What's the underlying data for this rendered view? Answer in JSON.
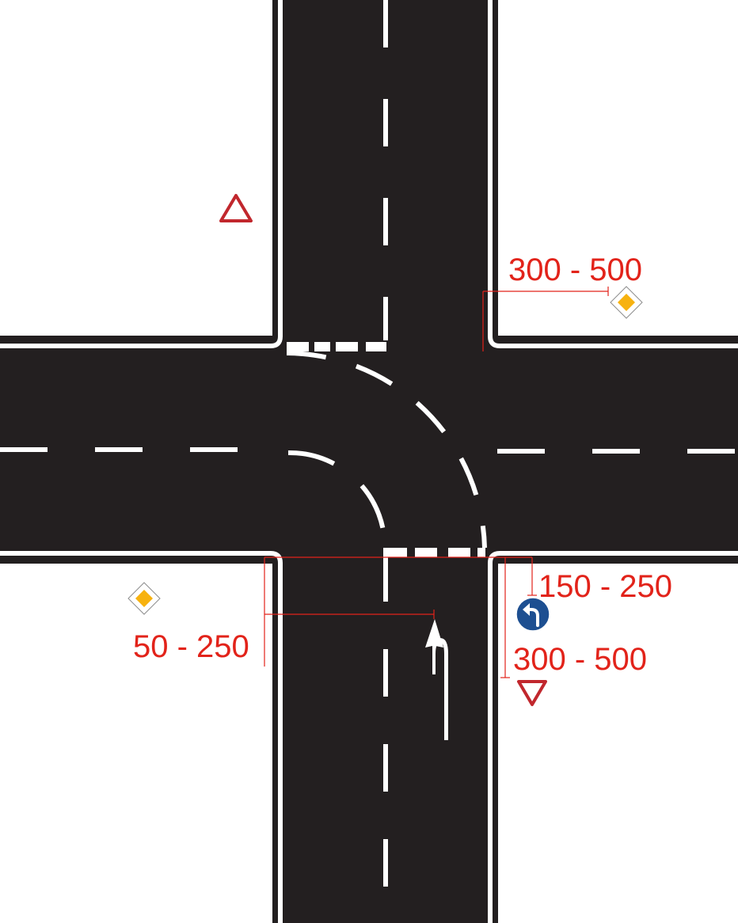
{
  "colors": {
    "asphalt": "#231f20",
    "marking": "#ffffff",
    "dimension": "#e2231a",
    "sign_red": "#c1272d",
    "sign_yellow": "#f7b20f",
    "sign_blue": "#1d4f91"
  },
  "signs": {
    "warning_triangle": "warning-triangle-icon",
    "priority_road_top": "priority-road-diamond-icon",
    "priority_road_bottom": "priority-road-diamond-icon",
    "turn_left_mandatory": "turn-left-arrow-icon",
    "give_way": "give-way-triangle-icon"
  },
  "dimensions": {
    "top_right": "300 - 500",
    "bottom_right_upper": "150 - 250",
    "bottom_right_lower": "300 - 500",
    "bottom_left": "50 - 250"
  }
}
